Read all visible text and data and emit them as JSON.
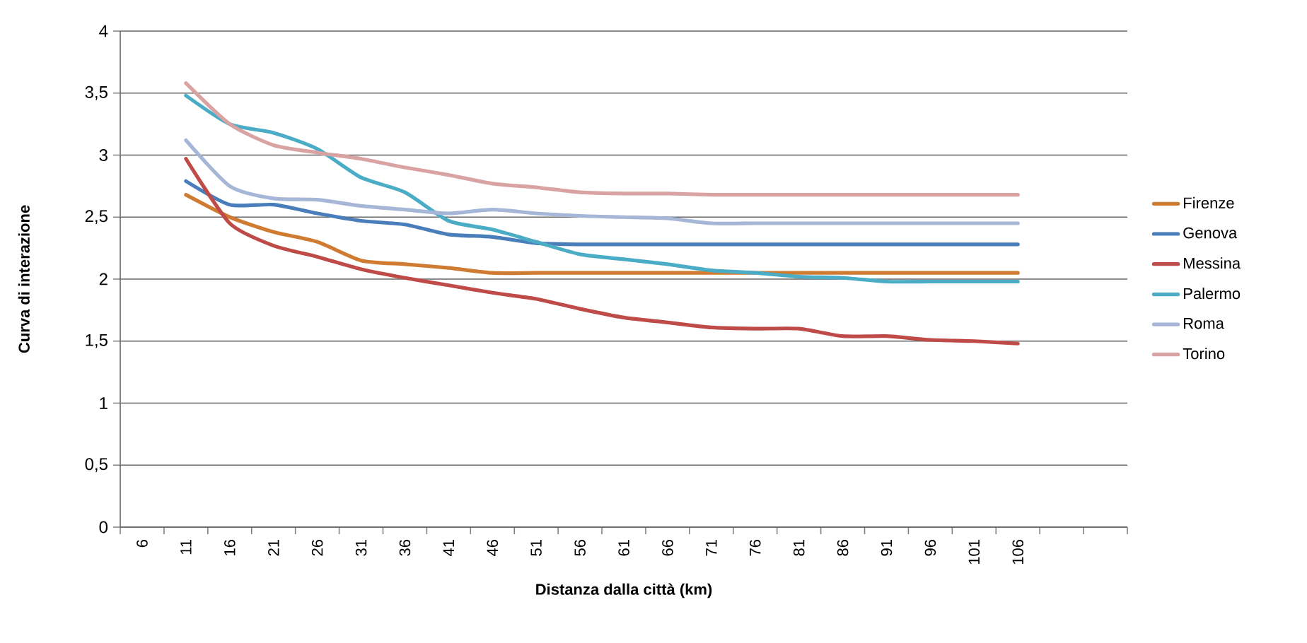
{
  "chart_data": {
    "type": "line",
    "xlabel": "Distanza dalla città (km)",
    "ylabel": "Curva di interazione",
    "categories": [
      "6",
      "11",
      "16",
      "21",
      "26",
      "31",
      "36",
      "41",
      "46",
      "51",
      "56",
      "61",
      "66",
      "71",
      "76",
      "81",
      "86",
      "91",
      "96",
      "101",
      "106",
      null,
      null
    ],
    "series": [
      {
        "name": "Firenze",
        "color": "#d07b32",
        "values": [
          null,
          2.68,
          2.5,
          2.38,
          2.3,
          2.15,
          2.12,
          2.09,
          2.05,
          2.05,
          2.05,
          2.05,
          2.05,
          2.05,
          2.05,
          2.05,
          2.05,
          2.05,
          2.05,
          2.05,
          2.05,
          null,
          null
        ]
      },
      {
        "name": "Genova",
        "color": "#4a7ebb",
        "values": [
          null,
          2.79,
          2.6,
          2.6,
          2.53,
          2.47,
          2.44,
          2.36,
          2.34,
          2.29,
          2.28,
          2.28,
          2.28,
          2.28,
          2.28,
          2.28,
          2.28,
          2.28,
          2.28,
          2.28,
          2.28,
          null,
          null
        ]
      },
      {
        "name": "Messina",
        "color": "#be4b48",
        "values": [
          null,
          2.97,
          2.45,
          2.27,
          2.18,
          2.08,
          2.01,
          1.95,
          1.89,
          1.84,
          1.76,
          1.69,
          1.65,
          1.61,
          1.6,
          1.6,
          1.54,
          1.54,
          1.51,
          1.5,
          1.48,
          null,
          null
        ]
      },
      {
        "name": "Palermo",
        "color": "#4bacc6",
        "values": [
          null,
          3.48,
          3.25,
          3.18,
          3.05,
          2.82,
          2.7,
          2.47,
          2.4,
          2.3,
          2.2,
          2.16,
          2.12,
          2.07,
          2.05,
          2.02,
          2.01,
          1.98,
          1.98,
          1.98,
          1.98,
          null,
          null
        ]
      },
      {
        "name": "Roma",
        "color": "#a5b6d6",
        "values": [
          null,
          3.12,
          2.75,
          2.65,
          2.64,
          2.59,
          2.56,
          2.53,
          2.56,
          2.53,
          2.51,
          2.5,
          2.49,
          2.45,
          2.45,
          2.45,
          2.45,
          2.45,
          2.45,
          2.45,
          2.45,
          null,
          null
        ]
      },
      {
        "name": "Torino",
        "color": "#d9a3a3",
        "values": [
          null,
          3.58,
          3.25,
          3.08,
          3.02,
          2.97,
          2.9,
          2.84,
          2.77,
          2.74,
          2.7,
          2.69,
          2.69,
          2.68,
          2.68,
          2.68,
          2.68,
          2.68,
          2.68,
          2.68,
          2.68,
          null,
          null
        ]
      }
    ],
    "ylim": [
      0,
      4
    ],
    "yticks": [
      0,
      {
        "value": 0.5,
        "label": "0,5"
      },
      1,
      {
        "value": 1.5,
        "label": "1,5"
      },
      2,
      {
        "value": 2.5,
        "label": "2,5"
      },
      3,
      {
        "value": 3.5,
        "label": "3,5"
      },
      4
    ],
    "grid": "y",
    "legend": "right",
    "marker": "none",
    "line_style": "solid"
  }
}
